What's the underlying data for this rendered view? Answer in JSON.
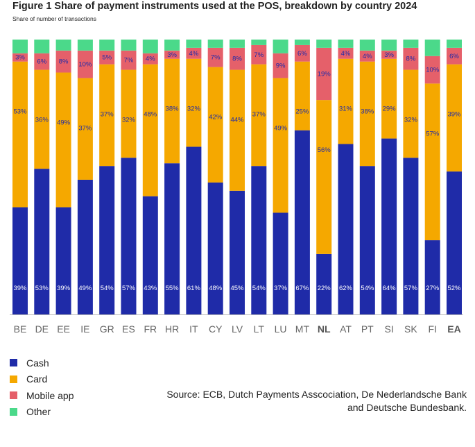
{
  "figure": {
    "title": "Figure 1  Share of payment instruments used at the POS, breakdown by country 2024",
    "subtitle": "Share of number of transactions",
    "source_line1": "Source: ECB, Dutch Payments Asscociation, De Nederlandsche Bank",
    "source_line2": "and Deutsche Bundesbank."
  },
  "colors": {
    "Cash": "#1f2ba8",
    "Card": "#f5a800",
    "Mobile app": "#e5606a",
    "Other": "#4bd98a",
    "cash_label": "#ffffff",
    "label": "#1f2ba8"
  },
  "legend": [
    {
      "label": "Cash",
      "color": "#1f2ba8"
    },
    {
      "label": "Card",
      "color": "#f5a800"
    },
    {
      "label": "Mobile app",
      "color": "#e5606a"
    },
    {
      "label": "Other",
      "color": "#4bd98a"
    }
  ],
  "chart_data": {
    "type": "bar",
    "stacked": true,
    "ylim": [
      0,
      100
    ],
    "grid": false,
    "legend_position": "bottom-left",
    "categories": [
      "BE",
      "DE",
      "EE",
      "IE",
      "GR",
      "ES",
      "FR",
      "HR",
      "IT",
      "CY",
      "LV",
      "LT",
      "LU",
      "MT",
      "NL",
      "AT",
      "PT",
      "SI",
      "SK",
      "FI",
      "EA"
    ],
    "bold_categories": [
      "NL",
      "EA"
    ],
    "series": [
      {
        "name": "Cash",
        "values": [
          39,
          53,
          39,
          49,
          54,
          57,
          43,
          55,
          61,
          48,
          45,
          54,
          37,
          67,
          22,
          62,
          54,
          64,
          57,
          27,
          52
        ]
      },
      {
        "name": "Card",
        "values": [
          53,
          36,
          49,
          37,
          37,
          32,
          48,
          38,
          32,
          42,
          44,
          37,
          49,
          25,
          56,
          31,
          38,
          29,
          32,
          57,
          39
        ]
      },
      {
        "name": "Mobile app",
        "values": [
          3,
          6,
          8,
          10,
          5,
          7,
          4,
          3,
          4,
          7,
          8,
          7,
          9,
          6,
          19,
          4,
          4,
          3,
          8,
          10,
          6
        ]
      },
      {
        "name": "Other",
        "values": [
          5,
          5,
          4,
          4,
          4,
          4,
          5,
          4,
          3,
          3,
          3,
          2,
          5,
          2,
          3,
          3,
          4,
          4,
          3,
          6,
          3
        ]
      }
    ],
    "labeled_series": [
      "Cash",
      "Card",
      "Mobile app"
    ],
    "value_suffix": "%"
  }
}
